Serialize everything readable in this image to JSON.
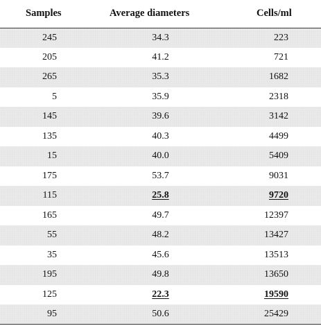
{
  "table": {
    "headers": [
      "Samples",
      "Average diameters",
      "Cells/ml"
    ],
    "rows": [
      {
        "sample": "245",
        "diameter": "34.3",
        "cells": "223",
        "highlight": false
      },
      {
        "sample": "205",
        "diameter": "41.2",
        "cells": "721",
        "highlight": false
      },
      {
        "sample": "265",
        "diameter": "35.3",
        "cells": "1682",
        "highlight": false
      },
      {
        "sample": "5",
        "diameter": "35.9",
        "cells": "2318",
        "highlight": false
      },
      {
        "sample": "145",
        "diameter": "39.6",
        "cells": "3142",
        "highlight": false
      },
      {
        "sample": "135",
        "diameter": "40.3",
        "cells": "4499",
        "highlight": false
      },
      {
        "sample": "15",
        "diameter": "40.0",
        "cells": "5409",
        "highlight": false
      },
      {
        "sample": "175",
        "diameter": "53.7",
        "cells": "9031",
        "highlight": false
      },
      {
        "sample": "115",
        "diameter": "25.8",
        "cells": "9720",
        "highlight": true
      },
      {
        "sample": "165",
        "diameter": "49.7",
        "cells": "12397",
        "highlight": false
      },
      {
        "sample": "55",
        "diameter": "48.2",
        "cells": "13427",
        "highlight": false
      },
      {
        "sample": "35",
        "diameter": "45.6",
        "cells": "13513",
        "highlight": false
      },
      {
        "sample": "195",
        "diameter": "49.8",
        "cells": "13650",
        "highlight": false
      },
      {
        "sample": "125",
        "diameter": "22.3",
        "cells": "19590",
        "highlight": true
      },
      {
        "sample": "95",
        "diameter": "50.6",
        "cells": "25429",
        "highlight": false
      }
    ]
  },
  "colors": {
    "shaded_row": "#e6e6e6",
    "rule": "#333333"
  }
}
